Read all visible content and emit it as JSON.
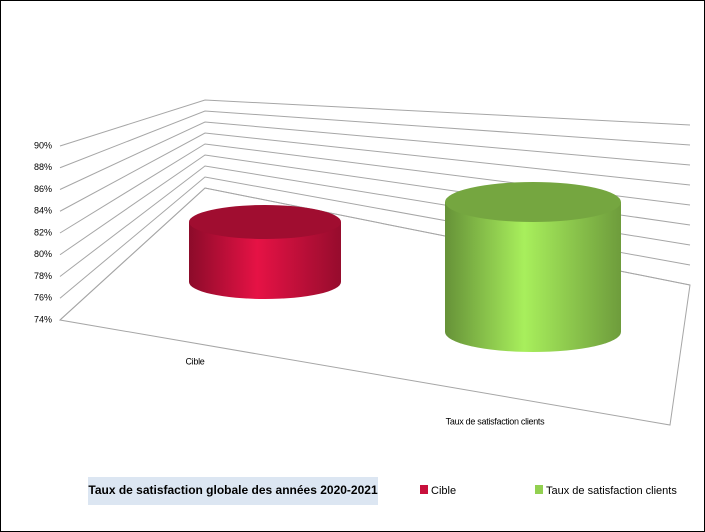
{
  "chart_data": {
    "type": "cylinder",
    "title": "Taux de satisfaction globale des années 2020-2021",
    "categories": [
      "Cible",
      "Taux de satisfaction  clients"
    ],
    "values": [
      80,
      87
    ],
    "colors": [
      "#c8103c",
      "#92d050"
    ],
    "ylim": [
      74,
      90
    ],
    "yticks": [
      {
        "value": 74,
        "label": "74%"
      },
      {
        "value": 76,
        "label": "76%"
      },
      {
        "value": 78,
        "label": "78%"
      },
      {
        "value": 80,
        "label": "80%"
      },
      {
        "value": 82,
        "label": "82%"
      },
      {
        "value": 84,
        "label": "84%"
      },
      {
        "value": 86,
        "label": "86%"
      },
      {
        "value": 88,
        "label": "88%"
      },
      {
        "value": 90,
        "label": "90%"
      }
    ],
    "grid": true
  }
}
